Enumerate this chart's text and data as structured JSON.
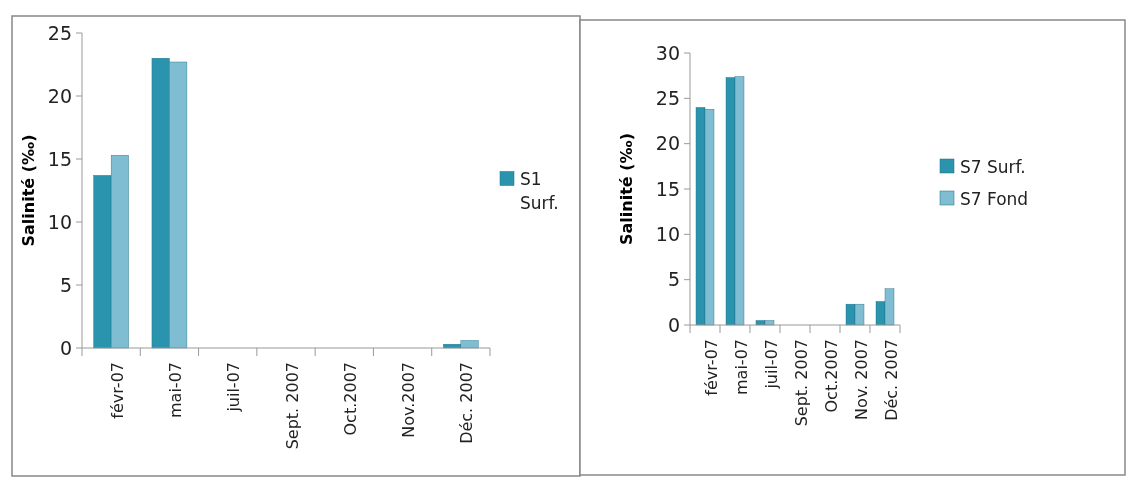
{
  "chart_data": [
    {
      "type": "bar",
      "ylabel": "Salinité (‰)",
      "categories": [
        "févr-07",
        "mai-07",
        "juil-07",
        "Sept. 2007",
        "Oct.2007",
        "Nov.2007",
        "Déc. 2007"
      ],
      "ylim": [
        0,
        25
      ],
      "yticks": [
        0,
        5,
        10,
        15,
        20,
        25
      ],
      "legend": "right",
      "series": [
        {
          "name": "S1 Surf.",
          "color": "#2a93ad",
          "values": [
            13.7,
            23.0,
            null,
            null,
            null,
            null,
            0.3
          ]
        },
        {
          "color": "#7fbdd3",
          "values": [
            15.3,
            22.7,
            null,
            null,
            null,
            null,
            0.6
          ]
        }
      ]
    },
    {
      "type": "bar",
      "ylabel": "Salinité (‰)",
      "categories": [
        "févr-07",
        "mai-07",
        "juil-07",
        "Sept. 2007",
        "Oct.2007",
        "Nov. 2007",
        "Déc. 2007"
      ],
      "ylim": [
        0,
        30
      ],
      "yticks": [
        0,
        5,
        10,
        15,
        20,
        25,
        30
      ],
      "legend": "right",
      "series": [
        {
          "name": "S7 Surf.",
          "color": "#2a93ad",
          "values": [
            24.0,
            27.3,
            0.5,
            null,
            null,
            2.3,
            2.6
          ]
        },
        {
          "name": "S7 Fond",
          "color": "#7fbdd3",
          "values": [
            23.8,
            27.4,
            0.5,
            null,
            null,
            2.3,
            4.0
          ]
        }
      ]
    }
  ]
}
